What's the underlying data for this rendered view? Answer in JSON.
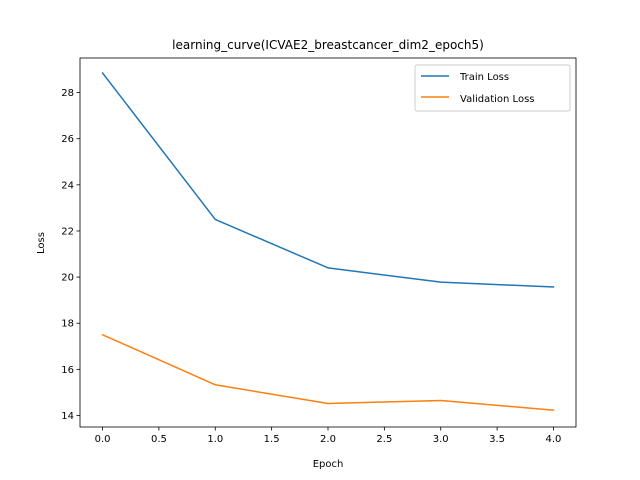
{
  "chart_data": {
    "type": "line",
    "title": "learning_curve(ICVAE2_breastcancer_dim2_epoch5)",
    "xlabel": "Epoch",
    "ylabel": "Loss",
    "xlim": [
      -0.2,
      4.2
    ],
    "ylim": [
      13.5,
      29.5
    ],
    "xticks": [
      0.0,
      0.5,
      1.0,
      1.5,
      2.0,
      2.5,
      3.0,
      3.5,
      4.0
    ],
    "xtick_labels": [
      "0.0",
      "0.5",
      "1.0",
      "1.5",
      "2.0",
      "2.5",
      "3.0",
      "3.5",
      "4.0"
    ],
    "yticks": [
      14,
      16,
      18,
      20,
      22,
      24,
      26,
      28
    ],
    "ytick_labels": [
      "14",
      "16",
      "18",
      "20",
      "22",
      "24",
      "26",
      "28"
    ],
    "grid": false,
    "legend_position": "top-right",
    "x": [
      0,
      1,
      2,
      3,
      4
    ],
    "series": [
      {
        "name": "Train Loss",
        "color": "#1f77b4",
        "values": [
          28.85,
          22.5,
          20.4,
          19.78,
          19.57
        ]
      },
      {
        "name": "Validation Loss",
        "color": "#ff7f0e",
        "values": [
          17.5,
          15.33,
          14.52,
          14.65,
          14.23
        ]
      }
    ]
  }
}
